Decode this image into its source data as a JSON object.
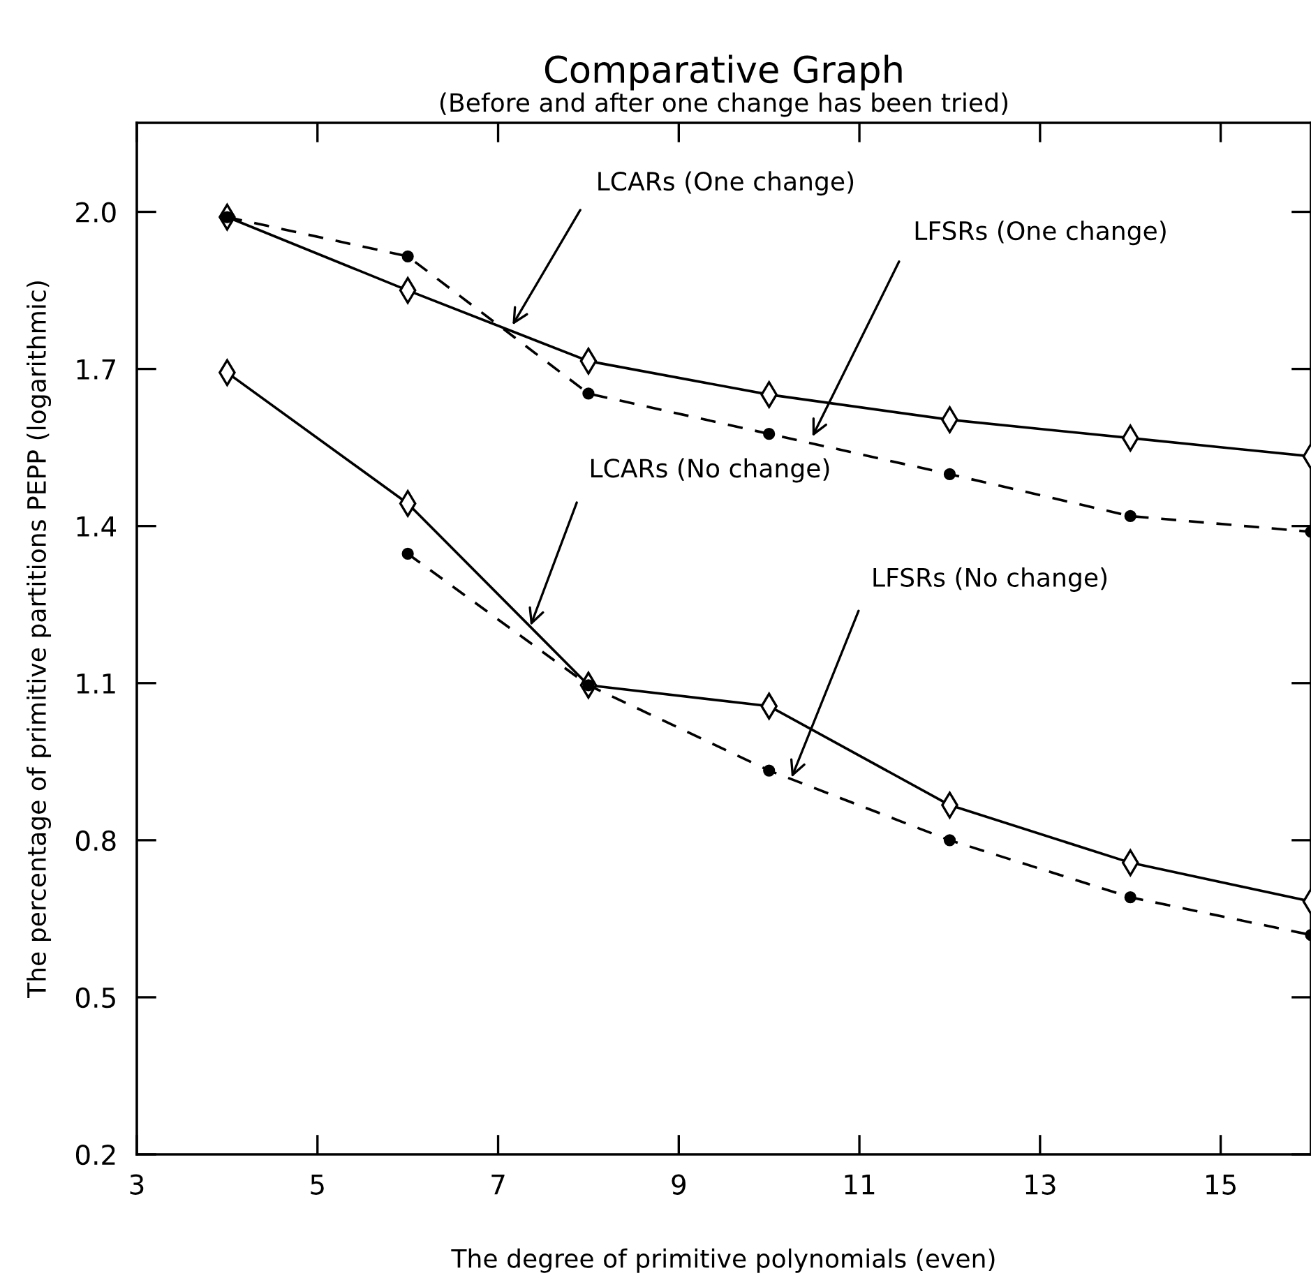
{
  "chart_data": {
    "type": "line",
    "title": "Comparative Graph",
    "subtitle": "(Before and after one change has been tried)",
    "xlabel": "The degree of primitive polynomials (even)",
    "ylabel": "The percentage of primitive partitions PEPP (logarithmic)",
    "x": [
      4,
      6,
      8,
      10,
      12,
      14,
      16
    ],
    "series": [
      {
        "color": "#000000",
        "marker": "diamond",
        "line_style": "solid",
        "values": [
          1.99,
          1.85,
          1.715,
          1.651,
          1.603,
          1.568,
          1.533
        ]
      },
      {
        "color": "#000000",
        "marker": "circle",
        "line_style": "dashed",
        "values": [
          1.99,
          1.915,
          1.653,
          1.576,
          1.499,
          1.419,
          1.389
        ]
      },
      {
        "color": "#000000",
        "marker": "diamond",
        "line_style": "solid",
        "values": [
          1.693,
          1.443,
          1.096,
          1.056,
          0.867,
          0.757,
          0.683
        ]
      },
      {
        "color": "#000000",
        "marker": "circle",
        "line_style": "dashed",
        "values": [
          null,
          1.347,
          1.096,
          0.933,
          0.8,
          0.691,
          0.619
        ]
      }
    ],
    "annotations": [
      {
        "text": "LCARs (One change)",
        "x": 7.16,
        "y": 1.784
      },
      {
        "text": "LFSRs (One change)",
        "x": 10.48,
        "y": 1.571
      },
      {
        "text": "LCARs (No change)",
        "x": 7.36,
        "y": 1.21
      },
      {
        "text": "LFSRs (No change)",
        "x": 10.25,
        "y": 0.92
      }
    ],
    "xlim": [
      3,
      16
    ],
    "xticks": [
      3,
      5,
      7,
      9,
      11,
      13,
      15
    ],
    "ylim": [
      0.2,
      2.17
    ],
    "yticks": [
      {
        "value": 0.2,
        "label": "0.2"
      },
      {
        "value": 0.5,
        "label": "0.5"
      },
      {
        "value": 0.8,
        "label": "0.8"
      },
      {
        "value": 1.1,
        "label": "1.1"
      },
      {
        "value": 1.4,
        "label": "1.4"
      },
      {
        "value": 1.7,
        "label": "1.7"
      },
      {
        "value": 2.0,
        "label": "2.0"
      }
    ],
    "grid": false,
    "legend": false
  }
}
